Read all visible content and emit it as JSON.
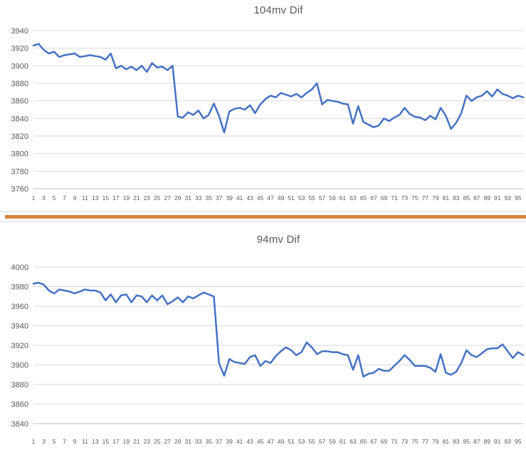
{
  "page": {
    "background": "#ffffff",
    "divider_color": "#d6853c",
    "gridline_color": "#d9d9d9",
    "axisline_color": "#bfbfbf",
    "label_color": "#595959"
  },
  "chart_data": [
    {
      "type": "line",
      "title": "104mv Dif",
      "legend": "none",
      "grid": true,
      "line_color": "#4472C4",
      "xlabel": "",
      "ylabel": "",
      "ylim": [
        3760,
        3940
      ],
      "yticks": [
        3940,
        3920,
        3900,
        3880,
        3860,
        3840,
        3820,
        3800,
        3780,
        3760
      ],
      "xticks": [
        "1",
        "3",
        "5",
        "7",
        "9",
        "11",
        "13",
        "15",
        "17",
        "19",
        "21",
        "23",
        "25",
        "27",
        "29",
        "31",
        "33",
        "35",
        "37",
        "39",
        "41",
        "43",
        "45",
        "47",
        "49",
        "51",
        "53",
        "55",
        "57",
        "59",
        "61",
        "63",
        "65",
        "67",
        "69",
        "71",
        "73",
        "75",
        "77",
        "79",
        "81",
        "83",
        "85",
        "87",
        "89",
        "91",
        "93",
        "95"
      ],
      "x": [
        1,
        2,
        3,
        4,
        5,
        6,
        7,
        8,
        9,
        10,
        11,
        12,
        13,
        14,
        15,
        16,
        17,
        18,
        19,
        20,
        21,
        22,
        23,
        24,
        25,
        26,
        27,
        28,
        29,
        30,
        31,
        32,
        33,
        34,
        35,
        36,
        37,
        38,
        39,
        40,
        41,
        42,
        43,
        44,
        45,
        46,
        47,
        48,
        49,
        50,
        51,
        52,
        53,
        54,
        55,
        56,
        57,
        58,
        59,
        60,
        61,
        62,
        63,
        64,
        65,
        66,
        67,
        68,
        69,
        70,
        71,
        72,
        73,
        74,
        75,
        76,
        77,
        78,
        79,
        80,
        81,
        82,
        83,
        84,
        85,
        86,
        87,
        88,
        89,
        90,
        91,
        92,
        93,
        94,
        95,
        96
      ],
      "values": [
        3923,
        3925,
        3918,
        3914,
        3916,
        3910,
        3912,
        3913,
        3914,
        3910,
        3911,
        3912,
        3911,
        3910,
        3907,
        3914,
        3897,
        3900,
        3896,
        3899,
        3895,
        3900,
        3893,
        3903,
        3898,
        3899,
        3895,
        3900,
        3842,
        3841,
        3847,
        3844,
        3849,
        3840,
        3844,
        3857,
        3843,
        3824,
        3848,
        3851,
        3852,
        3850,
        3855,
        3846,
        3856,
        3862,
        3866,
        3864,
        3869,
        3867,
        3865,
        3868,
        3864,
        3869,
        3873,
        3880,
        3856,
        3861,
        3860,
        3859,
        3857,
        3856,
        3834,
        3854,
        3836,
        3833,
        3830,
        3832,
        3840,
        3837,
        3841,
        3844,
        3852,
        3845,
        3842,
        3841,
        3838,
        3843,
        3839,
        3852,
        3843,
        3828,
        3835,
        3846,
        3866,
        3860,
        3864,
        3866,
        3871,
        3865,
        3873,
        3868,
        3866,
        3863,
        3866,
        3864
      ]
    },
    {
      "type": "line",
      "title": "94mv Dif",
      "legend": "none",
      "grid": true,
      "line_color": "#4472C4",
      "xlabel": "",
      "ylabel": "",
      "ylim": [
        3840,
        4000
      ],
      "yticks": [
        4000,
        3980,
        3960,
        3940,
        3920,
        3900,
        3880,
        3860,
        3840
      ],
      "xticks": [
        "1",
        "3",
        "5",
        "7",
        "9",
        "11",
        "13",
        "15",
        "17",
        "19",
        "21",
        "23",
        "25",
        "27",
        "29",
        "31",
        "33",
        "35",
        "37",
        "39",
        "41",
        "43",
        "45",
        "47",
        "49",
        "51",
        "53",
        "55",
        "57",
        "59",
        "61",
        "63",
        "65",
        "67",
        "69",
        "71",
        "73",
        "75",
        "77",
        "79",
        "81",
        "83",
        "85",
        "87",
        "89",
        "91",
        "93",
        "95"
      ],
      "x": [
        1,
        2,
        3,
        4,
        5,
        6,
        7,
        8,
        9,
        10,
        11,
        12,
        13,
        14,
        15,
        16,
        17,
        18,
        19,
        20,
        21,
        22,
        23,
        24,
        25,
        26,
        27,
        28,
        29,
        30,
        31,
        32,
        33,
        34,
        35,
        36,
        37,
        38,
        39,
        40,
        41,
        42,
        43,
        44,
        45,
        46,
        47,
        48,
        49,
        50,
        51,
        52,
        53,
        54,
        55,
        56,
        57,
        58,
        59,
        60,
        61,
        62,
        63,
        64,
        65,
        66,
        67,
        68,
        69,
        70,
        71,
        72,
        73,
        74,
        75,
        76,
        77,
        78,
        79,
        80,
        81,
        82,
        83,
        84,
        85,
        86,
        87,
        88,
        89,
        90,
        91,
        92,
        93,
        94,
        95,
        96
      ],
      "values": [
        3983,
        3984,
        3982,
        3976,
        3973,
        3977,
        3976,
        3975,
        3973,
        3975,
        3977,
        3976,
        3976,
        3974,
        3966,
        3972,
        3964,
        3971,
        3972,
        3964,
        3971,
        3970,
        3964,
        3971,
        3966,
        3971,
        3962,
        3965,
        3969,
        3964,
        3970,
        3968,
        3971,
        3974,
        3972,
        3970,
        3902,
        3889,
        3906,
        3903,
        3902,
        3901,
        3908,
        3910,
        3899,
        3904,
        3902,
        3909,
        3914,
        3918,
        3915,
        3910,
        3913,
        3923,
        3918,
        3911,
        3914,
        3914,
        3913,
        3913,
        3911,
        3910,
        3895,
        3910,
        3888,
        3891,
        3892,
        3896,
        3894,
        3894,
        3899,
        3904,
        3910,
        3905,
        3899,
        3899,
        3899,
        3897,
        3893,
        3911,
        3892,
        3890,
        3893,
        3902,
        3915,
        3910,
        3908,
        3912,
        3916,
        3917,
        3917,
        3921,
        3914,
        3907,
        3913,
        3910
      ]
    }
  ]
}
